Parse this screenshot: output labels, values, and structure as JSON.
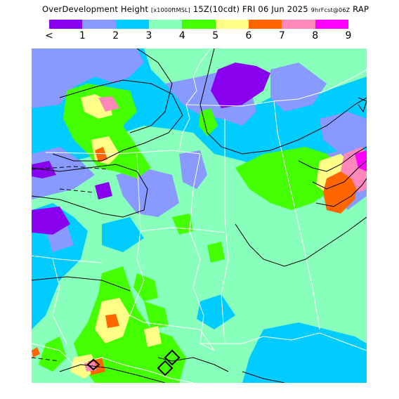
{
  "header": {
    "title_main": "OverDevelopment Height",
    "title_units": "[x1000ftMSL]",
    "title_time": "15Z(10cdt)",
    "title_date": "FRI 06 Jun 2025",
    "title_fcst": "9hrFcst@06Z",
    "title_model": "RAP"
  },
  "legend": {
    "colors": [
      "#8800ee",
      "#8899ff",
      "#00ccff",
      "#88ffbb",
      "#44ff00",
      "#ffff88",
      "#ff6600",
      "#ff88bb",
      "#ff00ff"
    ],
    "labels": [
      "<",
      "1",
      "2",
      "3",
      "4",
      "5",
      "6",
      "7",
      "8",
      "9"
    ]
  },
  "map": {
    "region": "Lower Mississippi Valley / Gulf Coast",
    "background_color": "#88ffbb"
  }
}
